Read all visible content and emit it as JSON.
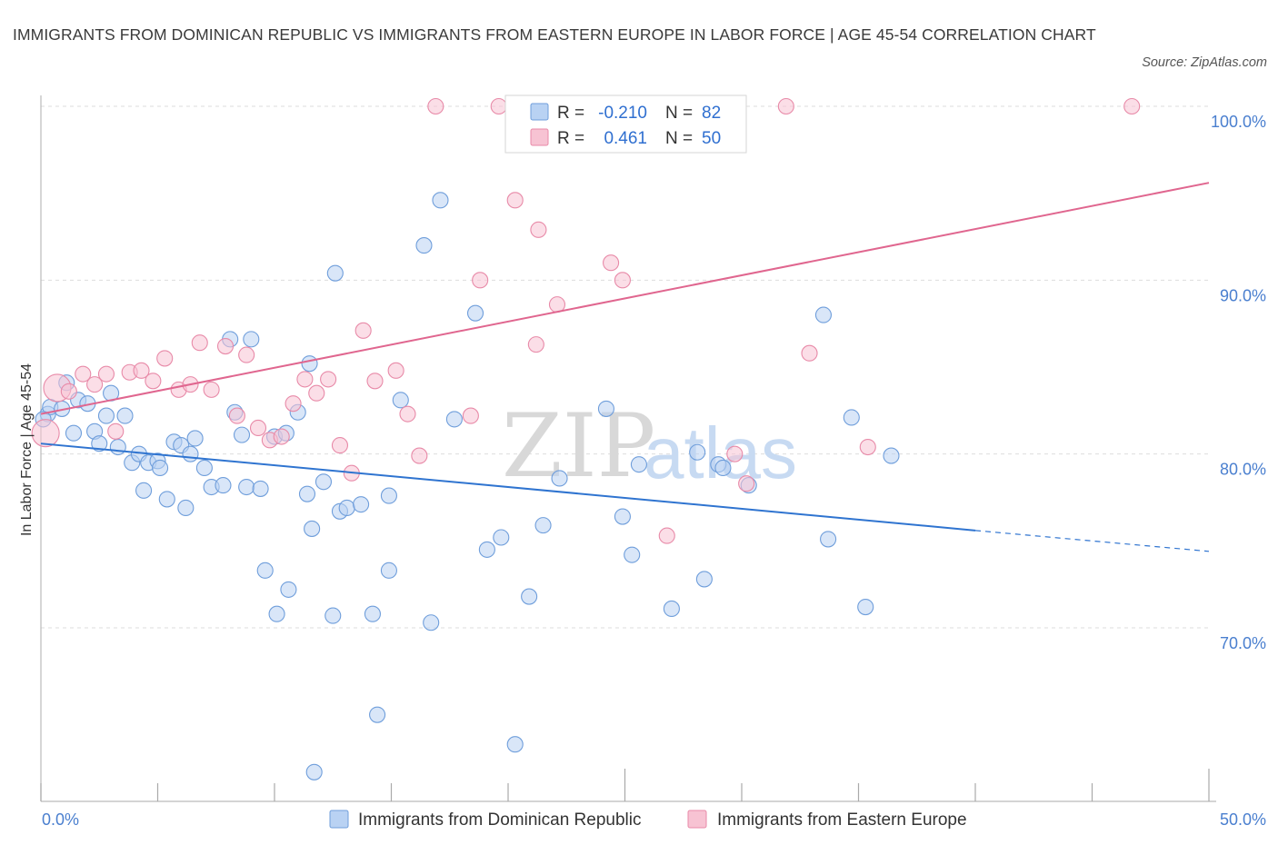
{
  "title": "IMMIGRANTS FROM DOMINICAN REPUBLIC VS IMMIGRANTS FROM EASTERN EUROPE IN LABOR FORCE | AGE 45-54 CORRELATION CHART",
  "source": "Source: ZipAtlas.com",
  "watermark": {
    "zip": "ZIP",
    "atlas": "atlas"
  },
  "colors": {
    "blue_fill": "#b9d2f3",
    "blue_stroke": "#6f9edb",
    "blue_line": "#2f74d0",
    "pink_fill": "#f7c3d3",
    "pink_stroke": "#e88aa8",
    "pink_line": "#e0668f",
    "grid": "#dddddd",
    "tick_text": "#4a7fcf"
  },
  "legend": {
    "rows": [
      {
        "r_label": "R =",
        "r_value": "-0.210",
        "n_label": "N =",
        "n_value": "82"
      },
      {
        "r_label": "R =",
        "r_value": "0.461",
        "n_label": "N =",
        "n_value": "50"
      }
    ]
  },
  "chart_data": {
    "type": "scatter",
    "title": "IMMIGRANTS FROM DOMINICAN REPUBLIC VS IMMIGRANTS FROM EASTERN EUROPE IN LABOR FORCE | AGE 45-54 CORRELATION CHART",
    "xlabel": "",
    "ylabel": "In Labor Force | Age 45-54",
    "xlim": [
      0,
      50
    ],
    "ylim": [
      60,
      100
    ],
    "x_tick_labels": [
      "0.0%",
      "50.0%"
    ],
    "y_ticks": [
      70,
      80,
      90,
      100
    ],
    "y_tick_labels": [
      "70.0%",
      "80.0%",
      "90.0%",
      "100.0%"
    ],
    "grid": true,
    "legend_position": "bottom",
    "series": [
      {
        "name": "Immigrants from Dominican Republic",
        "color": "#6f9edb",
        "r": -0.21,
        "n": 82,
        "trend": {
          "x0": 0,
          "y0": 80.6,
          "x1": 40,
          "y1": 75.6,
          "dashed_to_x": 50,
          "dashed_to_y": 74.4
        },
        "points": [
          [
            0.3,
            82.3
          ],
          [
            0.4,
            82.7
          ],
          [
            0.9,
            82.6
          ],
          [
            1.1,
            84.1
          ],
          [
            1.4,
            81.2
          ],
          [
            1.6,
            83.1
          ],
          [
            2.0,
            82.9
          ],
          [
            2.3,
            81.3
          ],
          [
            2.5,
            80.6
          ],
          [
            2.8,
            82.2
          ],
          [
            3.0,
            83.5
          ],
          [
            3.3,
            80.4
          ],
          [
            3.6,
            82.2
          ],
          [
            3.9,
            79.5
          ],
          [
            4.2,
            80.0
          ],
          [
            4.4,
            77.9
          ],
          [
            4.6,
            79.5
          ],
          [
            5.0,
            79.6
          ],
          [
            5.1,
            79.2
          ],
          [
            5.4,
            77.4
          ],
          [
            5.7,
            80.7
          ],
          [
            6.0,
            80.5
          ],
          [
            6.2,
            76.9
          ],
          [
            6.4,
            80.0
          ],
          [
            6.6,
            80.9
          ],
          [
            7.0,
            79.2
          ],
          [
            7.3,
            78.1
          ],
          [
            7.8,
            78.2
          ],
          [
            8.1,
            86.6
          ],
          [
            8.3,
            82.4
          ],
          [
            8.6,
            81.1
          ],
          [
            8.8,
            78.1
          ],
          [
            9.0,
            86.6
          ],
          [
            9.4,
            78.0
          ],
          [
            9.6,
            73.3
          ],
          [
            10.0,
            81.0
          ],
          [
            10.1,
            70.8
          ],
          [
            10.5,
            81.2
          ],
          [
            10.6,
            72.2
          ],
          [
            11.0,
            82.4
          ],
          [
            11.4,
            77.7
          ],
          [
            11.5,
            85.2
          ],
          [
            11.6,
            75.7
          ],
          [
            12.1,
            78.4
          ],
          [
            12.5,
            70.7
          ],
          [
            12.6,
            90.4
          ],
          [
            12.8,
            76.7
          ],
          [
            13.1,
            76.9
          ],
          [
            13.7,
            77.1
          ],
          [
            14.2,
            70.8
          ],
          [
            14.4,
            65.0
          ],
          [
            14.9,
            73.3
          ],
          [
            14.9,
            77.6
          ],
          [
            15.4,
            83.1
          ],
          [
            16.4,
            92.0
          ],
          [
            16.7,
            70.3
          ],
          [
            17.1,
            94.6
          ],
          [
            17.7,
            82.0
          ],
          [
            18.6,
            88.1
          ],
          [
            19.1,
            74.5
          ],
          [
            19.7,
            75.2
          ],
          [
            20.3,
            63.3
          ],
          [
            20.9,
            71.8
          ],
          [
            21.5,
            75.9
          ],
          [
            22.2,
            78.6
          ],
          [
            24.2,
            82.6
          ],
          [
            24.9,
            76.4
          ],
          [
            25.3,
            74.2
          ],
          [
            25.6,
            79.4
          ],
          [
            27.0,
            71.1
          ],
          [
            28.1,
            80.1
          ],
          [
            28.4,
            72.8
          ],
          [
            29.0,
            79.4
          ],
          [
            29.2,
            79.2
          ],
          [
            30.3,
            78.2
          ],
          [
            33.5,
            88.0
          ],
          [
            33.7,
            75.1
          ],
          [
            34.7,
            82.1
          ],
          [
            35.3,
            71.2
          ],
          [
            36.4,
            79.9
          ],
          [
            11.7,
            61.7
          ],
          [
            0.1,
            82.0
          ]
        ]
      },
      {
        "name": "Immigrants from Eastern Europe",
        "color": "#e88aa8",
        "r": 0.461,
        "n": 50,
        "trend": {
          "x0": 0,
          "y0": 82.3,
          "x1": 50,
          "y1": 95.6
        },
        "points": [
          [
            0.2,
            81.2
          ],
          [
            0.7,
            83.8
          ],
          [
            1.2,
            83.6
          ],
          [
            1.8,
            84.6
          ],
          [
            2.3,
            84.0
          ],
          [
            2.8,
            84.6
          ],
          [
            3.2,
            81.3
          ],
          [
            3.8,
            84.7
          ],
          [
            4.3,
            84.8
          ],
          [
            4.8,
            84.2
          ],
          [
            5.3,
            85.5
          ],
          [
            5.9,
            83.7
          ],
          [
            6.4,
            84.0
          ],
          [
            6.8,
            86.4
          ],
          [
            7.3,
            83.7
          ],
          [
            7.9,
            86.2
          ],
          [
            8.4,
            82.2
          ],
          [
            8.8,
            85.7
          ],
          [
            9.3,
            81.5
          ],
          [
            9.8,
            80.8
          ],
          [
            10.3,
            81.0
          ],
          [
            10.8,
            82.9
          ],
          [
            11.3,
            84.3
          ],
          [
            11.8,
            83.5
          ],
          [
            12.3,
            84.3
          ],
          [
            12.8,
            80.5
          ],
          [
            13.3,
            78.9
          ],
          [
            13.8,
            87.1
          ],
          [
            14.3,
            84.2
          ],
          [
            15.2,
            84.8
          ],
          [
            15.7,
            82.3
          ],
          [
            16.2,
            79.9
          ],
          [
            16.9,
            100.0
          ],
          [
            18.4,
            82.2
          ],
          [
            18.8,
            90.0
          ],
          [
            19.6,
            100.0
          ],
          [
            20.3,
            94.6
          ],
          [
            21.2,
            86.3
          ],
          [
            21.3,
            92.9
          ],
          [
            22.1,
            88.6
          ],
          [
            24.4,
            91.0
          ],
          [
            24.9,
            90.0
          ],
          [
            26.8,
            75.3
          ],
          [
            28.4,
            100.0
          ],
          [
            30.2,
            78.3
          ],
          [
            31.9,
            100.0
          ],
          [
            32.9,
            85.8
          ],
          [
            35.4,
            80.4
          ],
          [
            46.7,
            100.0
          ],
          [
            29.7,
            80.0
          ]
        ]
      }
    ]
  },
  "bottom_legend": [
    {
      "label": "Immigrants from Dominican Republic"
    },
    {
      "label": "Immigrants from Eastern Europe"
    }
  ]
}
